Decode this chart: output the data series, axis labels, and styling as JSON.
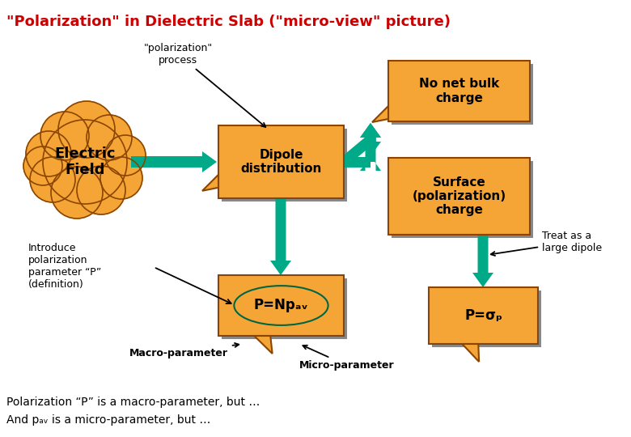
{
  "title": "\"Polarization\" in Dielectric Slab (\"micro-view\" picture)",
  "title_color": "#cc0000",
  "title_fontsize": 13,
  "box_color": "#f5a535",
  "box_edge_color": "#8B4500",
  "box_shadow_color": "#888888",
  "arrow_color": "#00aa88",
  "bg_color": "#ffffff",
  "text_color": "#000000",
  "cloud_color": "#f5a535",
  "cloud_edge_color": "#8B4500",
  "bottom_text1": "Polarization “P” is a macro-parameter, but …",
  "bottom_text2": "And pₐᵥ is a micro-parameter, but …",
  "macro_label": "Macro-parameter",
  "micro_label": "Micro-parameter"
}
